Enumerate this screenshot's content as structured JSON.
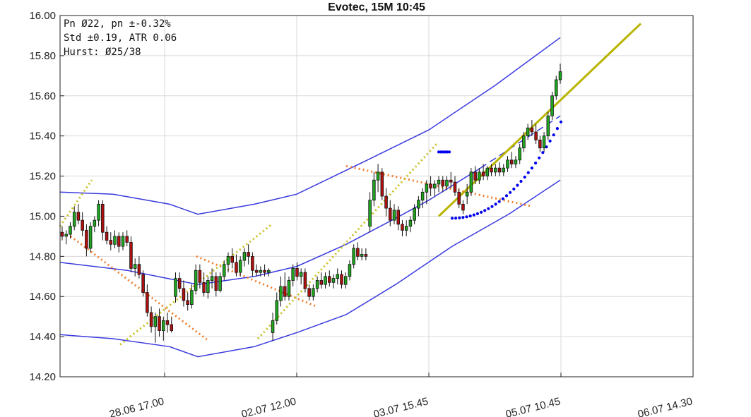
{
  "chart_data": {
    "type": "candlestick",
    "title": "Evotec, 15M 10:45",
    "info_lines": [
      "Pn  Ø22, pn ±-0.32%",
      "Std ±0.19, ATR 0.06",
      "Hurst: Ø25/38"
    ],
    "ylim": [
      14.2,
      16.0
    ],
    "y_ticks": [
      "16.00",
      "15.80",
      "15.60",
      "15.40",
      "15.20",
      "15.00",
      "14.80",
      "14.60",
      "14.40",
      "14.20"
    ],
    "y_tick_values": [
      16.0,
      15.8,
      15.6,
      15.4,
      15.2,
      15.0,
      14.8,
      14.6,
      14.4,
      14.2
    ],
    "x_ticks": [
      "28.06 17.00",
      "02.07 12.00",
      "03.07 15.45",
      "05.07 10.45",
      "06.07 14.30"
    ],
    "colors": {
      "up": "#1fa81f",
      "down": "#b01010",
      "channel": "#3a3adf",
      "trend_yellow": "#b8b400",
      "dotted_orange": "#f08030",
      "dotted_yellow": "#c8c020",
      "dots_blue": "#0000ee"
    },
    "candles": [
      [
        14.92,
        14.95,
        14.88,
        14.9
      ],
      [
        14.9,
        14.93,
        14.86,
        14.91
      ],
      [
        14.91,
        14.97,
        14.89,
        14.95
      ],
      [
        14.95,
        15.05,
        14.93,
        15.02
      ],
      [
        15.02,
        15.06,
        14.96,
        14.98
      ],
      [
        14.98,
        15.02,
        14.9,
        14.93
      ],
      [
        14.93,
        14.96,
        14.8,
        14.84
      ],
      [
        14.84,
        14.97,
        14.82,
        14.95
      ],
      [
        14.95,
        15.0,
        14.92,
        14.98
      ],
      [
        14.98,
        15.08,
        14.95,
        15.06
      ],
      [
        15.06,
        15.08,
        14.88,
        14.92
      ],
      [
        14.92,
        14.95,
        14.86,
        14.88
      ],
      [
        14.88,
        14.92,
        14.83,
        14.86
      ],
      [
        14.86,
        14.93,
        14.84,
        14.9
      ],
      [
        14.9,
        14.92,
        14.82,
        14.85
      ],
      [
        14.85,
        14.92,
        14.83,
        14.9
      ],
      [
        14.9,
        14.93,
        14.85,
        14.87
      ],
      [
        14.87,
        14.9,
        14.72,
        14.74
      ],
      [
        14.74,
        14.79,
        14.7,
        14.76
      ],
      [
        14.76,
        14.8,
        14.69,
        14.71
      ],
      [
        14.71,
        14.73,
        14.6,
        14.62
      ],
      [
        14.62,
        14.66,
        14.5,
        14.52
      ],
      [
        14.52,
        14.55,
        14.42,
        14.45
      ],
      [
        14.45,
        14.52,
        14.37,
        14.5
      ],
      [
        14.5,
        14.54,
        14.4,
        14.43
      ],
      [
        14.43,
        14.5,
        14.38,
        14.48
      ],
      [
        14.48,
        14.52,
        14.42,
        14.46
      ],
      [
        14.46,
        14.5,
        14.42,
        14.43
      ],
      [
        14.6,
        14.72,
        14.57,
        14.69
      ],
      [
        14.69,
        14.72,
        14.62,
        14.64
      ],
      [
        14.64,
        14.68,
        14.55,
        14.58
      ],
      [
        14.58,
        14.62,
        14.53,
        14.56
      ],
      [
        14.56,
        14.66,
        14.54,
        14.63
      ],
      [
        14.63,
        14.76,
        14.61,
        14.73
      ],
      [
        14.73,
        14.76,
        14.64,
        14.67
      ],
      [
        14.67,
        14.72,
        14.6,
        14.62
      ],
      [
        14.62,
        14.7,
        14.59,
        14.68
      ],
      [
        14.68,
        14.74,
        14.64,
        14.7
      ],
      [
        14.7,
        14.72,
        14.6,
        14.63
      ],
      [
        14.63,
        14.72,
        14.62,
        14.7
      ],
      [
        14.7,
        14.78,
        14.68,
        14.76
      ],
      [
        14.76,
        14.82,
        14.72,
        14.8
      ],
      [
        14.8,
        14.84,
        14.74,
        14.77
      ],
      [
        14.77,
        14.81,
        14.7,
        14.72
      ],
      [
        14.72,
        14.8,
        14.7,
        14.78
      ],
      [
        14.78,
        14.84,
        14.75,
        14.82
      ],
      [
        14.82,
        14.86,
        14.76,
        14.8
      ],
      [
        14.8,
        14.82,
        14.7,
        14.73
      ],
      [
        14.73,
        14.76,
        14.7,
        14.72
      ],
      [
        14.72,
        14.75,
        14.7,
        14.73
      ],
      [
        14.73,
        14.76,
        14.7,
        14.72
      ],
      [
        14.72,
        14.74,
        14.7,
        14.73
      ],
      [
        14.42,
        14.52,
        14.38,
        14.48
      ],
      [
        14.48,
        14.62,
        14.46,
        14.58
      ],
      [
        14.58,
        14.7,
        14.55,
        14.65
      ],
      [
        14.65,
        14.72,
        14.58,
        14.6
      ],
      [
        14.6,
        14.7,
        14.58,
        14.68
      ],
      [
        14.68,
        14.76,
        14.65,
        14.74
      ],
      [
        14.74,
        14.77,
        14.68,
        14.7
      ],
      [
        14.7,
        14.74,
        14.66,
        14.72
      ],
      [
        14.72,
        14.74,
        14.62,
        14.64
      ],
      [
        14.64,
        14.66,
        14.58,
        14.6
      ],
      [
        14.6,
        14.66,
        14.58,
        14.64
      ],
      [
        14.64,
        14.7,
        14.62,
        14.68
      ],
      [
        14.68,
        14.72,
        14.64,
        14.66
      ],
      [
        14.66,
        14.72,
        14.64,
        14.7
      ],
      [
        14.7,
        14.73,
        14.65,
        14.67
      ],
      [
        14.67,
        14.71,
        14.64,
        14.69
      ],
      [
        14.69,
        14.74,
        14.66,
        14.71
      ],
      [
        14.71,
        14.73,
        14.64,
        14.66
      ],
      [
        14.66,
        14.72,
        14.64,
        14.7
      ],
      [
        14.7,
        14.78,
        14.68,
        14.76
      ],
      [
        14.76,
        14.86,
        14.74,
        14.84
      ],
      [
        14.84,
        14.87,
        14.78,
        14.8
      ],
      [
        14.8,
        14.84,
        14.78,
        14.81
      ],
      [
        14.81,
        14.84,
        14.78,
        14.8
      ],
      [
        14.95,
        15.12,
        14.92,
        15.08
      ],
      [
        15.08,
        15.22,
        15.05,
        15.18
      ],
      [
        15.18,
        15.26,
        15.12,
        15.22
      ],
      [
        15.22,
        15.24,
        15.08,
        15.1
      ],
      [
        15.1,
        15.14,
        15.0,
        15.04
      ],
      [
        15.04,
        15.08,
        14.95,
        14.98
      ],
      [
        14.98,
        15.06,
        14.96,
        15.03
      ],
      [
        15.03,
        15.05,
        14.93,
        14.96
      ],
      [
        14.96,
        14.98,
        14.9,
        14.93
      ],
      [
        14.93,
        14.98,
        14.9,
        14.95
      ],
      [
        14.95,
        15.0,
        14.92,
        14.98
      ],
      [
        14.98,
        15.06,
        14.96,
        15.04
      ],
      [
        15.04,
        15.1,
        15.0,
        15.08
      ],
      [
        15.08,
        15.14,
        15.04,
        15.12
      ],
      [
        15.12,
        15.18,
        15.06,
        15.16
      ],
      [
        15.16,
        15.2,
        15.1,
        15.14
      ],
      [
        15.14,
        15.18,
        15.1,
        15.16
      ],
      [
        15.16,
        15.2,
        15.12,
        15.18
      ],
      [
        15.18,
        15.2,
        15.12,
        15.15
      ],
      [
        15.15,
        15.2,
        15.13,
        15.18
      ],
      [
        15.18,
        15.22,
        15.14,
        15.17
      ],
      [
        15.17,
        15.2,
        15.1,
        15.12
      ],
      [
        15.12,
        15.14,
        15.04,
        15.06
      ],
      [
        15.06,
        15.08,
        15.01,
        15.03
      ],
      [
        15.1,
        15.16,
        15.06,
        15.12
      ],
      [
        15.12,
        15.24,
        15.1,
        15.22
      ],
      [
        15.22,
        15.25,
        15.16,
        15.18
      ],
      [
        15.18,
        15.24,
        15.16,
        15.22
      ],
      [
        15.22,
        15.26,
        15.18,
        15.2
      ],
      [
        15.2,
        15.25,
        15.18,
        15.24
      ],
      [
        15.24,
        15.26,
        15.2,
        15.22
      ],
      [
        15.22,
        15.26,
        15.2,
        15.24
      ],
      [
        15.24,
        15.27,
        15.2,
        15.22
      ],
      [
        15.22,
        15.26,
        15.2,
        15.24
      ],
      [
        15.24,
        15.3,
        15.22,
        15.28
      ],
      [
        15.28,
        15.32,
        15.24,
        15.26
      ],
      [
        15.26,
        15.3,
        15.24,
        15.28
      ],
      [
        15.28,
        15.36,
        15.26,
        15.34
      ],
      [
        15.34,
        15.42,
        15.32,
        15.4
      ],
      [
        15.4,
        15.46,
        15.38,
        15.44
      ],
      [
        15.44,
        15.48,
        15.4,
        15.42
      ],
      [
        15.42,
        15.46,
        15.36,
        15.38
      ],
      [
        15.38,
        15.4,
        15.32,
        15.34
      ],
      [
        15.34,
        15.42,
        15.32,
        15.4
      ],
      [
        15.4,
        15.52,
        15.38,
        15.5
      ],
      [
        15.5,
        15.62,
        15.48,
        15.6
      ],
      [
        15.6,
        15.7,
        15.58,
        15.68
      ],
      [
        15.68,
        15.76,
        15.66,
        15.72
      ]
    ]
  }
}
